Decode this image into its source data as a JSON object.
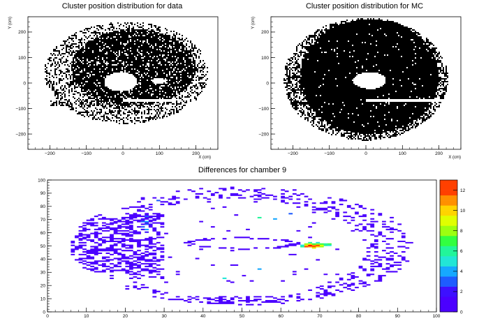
{
  "chart_data": [
    {
      "type": "scatter",
      "title": "Cluster position distribution for data",
      "xlabel": "X (cm)",
      "ylabel": "Y (cm)",
      "xlim": [
        -260,
        260
      ],
      "ylim": [
        -260,
        260
      ],
      "xticks": [
        -200,
        -100,
        0,
        100,
        200
      ],
      "yticks": [
        -200,
        -100,
        0,
        100,
        200
      ],
      "x_tick_labels": [
        "−200",
        "−100",
        "0",
        "100",
        "200"
      ],
      "y_tick_labels": [
        "−200",
        "−100",
        "0",
        "100",
        "200"
      ],
      "density_regions": [
        {
          "shape": "ellipse",
          "cx": 10,
          "cy": 40,
          "rx": 225,
          "ry": 200,
          "density": 0.35
        },
        {
          "shape": "ellipse",
          "cx": 30,
          "cy": 60,
          "rx": 170,
          "ry": 150,
          "density": 0.85
        },
        {
          "shape": "rect",
          "x0": -200,
          "x1": 0,
          "y0": -90,
          "y1": -70,
          "density": 0.5
        }
      ],
      "empty_regions": [
        {
          "shape": "ellipse",
          "cx": -5,
          "cy": 5,
          "rx": 45,
          "ry": 38
        },
        {
          "shape": "ellipse",
          "cx": 100,
          "cy": 8,
          "rx": 20,
          "ry": 10
        },
        {
          "shape": "rect",
          "x0": 0,
          "x1": 140,
          "y0": -75,
          "y1": -65
        }
      ]
    },
    {
      "type": "scatter",
      "title": "Cluster position distribution for MC",
      "xlabel": "X (cm)",
      "ylabel": "Y (cm)",
      "xlim": [
        -260,
        260
      ],
      "ylim": [
        -260,
        260
      ],
      "xticks": [
        -200,
        -100,
        0,
        100,
        200
      ],
      "yticks": [
        -200,
        -100,
        0,
        100,
        200
      ],
      "x_tick_labels": [
        "−200",
        "−100",
        "0",
        "100",
        "200"
      ],
      "y_tick_labels": [
        "−200",
        "−100",
        "0",
        "100",
        "200"
      ],
      "density_regions": [
        {
          "shape": "ellipse",
          "cx": 0,
          "cy": 15,
          "rx": 225,
          "ry": 240,
          "density": 0.5
        },
        {
          "shape": "ellipse",
          "cx": 10,
          "cy": 25,
          "rx": 190,
          "ry": 225,
          "density": 0.97
        },
        {
          "shape": "rect",
          "x0": -200,
          "x1": -100,
          "y0": -90,
          "y1": -70,
          "density": 0.6
        }
      ],
      "empty_regions": [
        {
          "shape": "ellipse",
          "cx": 10,
          "cy": 10,
          "rx": 45,
          "ry": 33
        },
        {
          "shape": "rect",
          "x0": 0,
          "x1": 210,
          "y0": -75,
          "y1": -65
        }
      ]
    },
    {
      "type": "heatmap",
      "title": "Differences for chamber 9",
      "xlim": [
        0,
        100
      ],
      "ylim": [
        0,
        100
      ],
      "xticks": [
        0,
        10,
        20,
        30,
        40,
        50,
        60,
        70,
        80,
        90,
        100
      ],
      "yticks": [
        0,
        10,
        20,
        30,
        40,
        50,
        60,
        70,
        80,
        90,
        100
      ],
      "x_tick_labels": [
        "0",
        "10",
        "20",
        "30",
        "40",
        "50",
        "60",
        "70",
        "80",
        "90",
        "100"
      ],
      "y_tick_labels": [
        "0",
        "10",
        "20",
        "30",
        "40",
        "50",
        "60",
        "70",
        "80",
        "90",
        "100"
      ],
      "bins": [
        100,
        100
      ],
      "zlim": [
        0,
        13
      ],
      "colorbar_ticks": [
        0,
        2,
        4,
        6,
        8,
        10,
        12
      ],
      "colorbar_tick_labels": [
        "0",
        "2",
        "4",
        "6",
        "8",
        "10",
        "12"
      ],
      "hot_cells": [
        {
          "x": 66,
          "y": 49,
          "z": 12
        },
        {
          "x": 67,
          "y": 49,
          "z": 11
        },
        {
          "x": 68,
          "y": 49,
          "z": 12
        },
        {
          "x": 69,
          "y": 49,
          "z": 10
        },
        {
          "x": 70,
          "y": 49,
          "z": 8
        },
        {
          "x": 71,
          "y": 50,
          "z": 6
        },
        {
          "x": 66,
          "y": 50,
          "z": 10
        },
        {
          "x": 67,
          "y": 50,
          "z": 13
        },
        {
          "x": 68,
          "y": 50,
          "z": 11
        },
        {
          "x": 69,
          "y": 50,
          "z": 12
        },
        {
          "x": 70,
          "y": 50,
          "z": 9
        },
        {
          "x": 72,
          "y": 51,
          "z": 7
        },
        {
          "x": 66,
          "y": 51,
          "z": 8
        },
        {
          "x": 67,
          "y": 51,
          "z": 9
        },
        {
          "x": 68,
          "y": 51,
          "z": 7
        },
        {
          "x": 69,
          "y": 51,
          "z": 8
        },
        {
          "x": 70,
          "y": 51,
          "z": 7
        },
        {
          "x": 71,
          "y": 51,
          "z": 6
        },
        {
          "x": 65,
          "y": 49,
          "z": 6
        },
        {
          "x": 65,
          "y": 50,
          "z": 5
        },
        {
          "x": 68,
          "y": 48,
          "z": 9
        },
        {
          "x": 67,
          "y": 52,
          "z": 6
        },
        {
          "x": 69,
          "y": 52,
          "z": 5
        },
        {
          "x": 72,
          "y": 50,
          "z": 5
        },
        {
          "x": 24,
          "y": 68,
          "z": 3
        },
        {
          "x": 25,
          "y": 68,
          "z": 4
        },
        {
          "x": 25,
          "y": 66,
          "z": 3
        },
        {
          "x": 24,
          "y": 64,
          "z": 3
        },
        {
          "x": 25,
          "y": 62,
          "z": 4
        },
        {
          "x": 25,
          "y": 60,
          "z": 2
        },
        {
          "x": 24,
          "y": 70,
          "z": 2
        },
        {
          "x": 25,
          "y": 72,
          "z": 3
        },
        {
          "x": 26,
          "y": 66,
          "z": 2
        },
        {
          "x": 54,
          "y": 71,
          "z": 6
        },
        {
          "x": 58,
          "y": 70,
          "z": 4
        },
        {
          "x": 45,
          "y": 25,
          "z": 5
        },
        {
          "x": 54,
          "y": 32,
          "z": 4
        },
        {
          "x": 28,
          "y": 84,
          "z": 3
        },
        {
          "x": 62,
          "y": 74,
          "z": 3
        }
      ]
    }
  ]
}
